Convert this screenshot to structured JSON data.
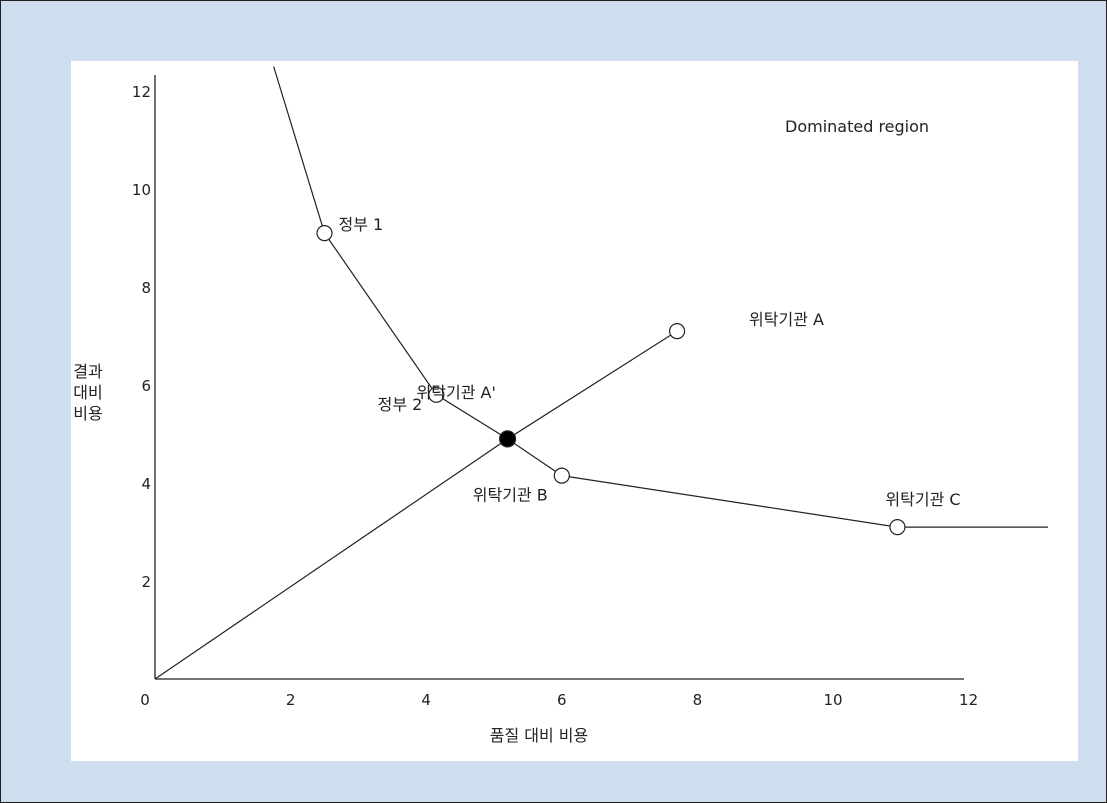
{
  "chart_data": {
    "type": "line",
    "title": "",
    "xlabel": "품질 대비 비용",
    "ylabel_lines": [
      "결과",
      "대비",
      "비용"
    ],
    "xlim": [
      0,
      12.3
    ],
    "ylim": [
      0,
      12.5
    ],
    "x_ticks": [
      0,
      2,
      4,
      6,
      8,
      10,
      12
    ],
    "y_ticks": [
      2,
      4,
      6,
      8,
      10,
      12
    ],
    "grid": false,
    "series": [
      {
        "points": [
          {
            "x": 1.75,
            "y": 12.5
          },
          {
            "x": 2.5,
            "y": 9.1
          },
          {
            "x": 4.15,
            "y": 5.8
          },
          {
            "x": 5.2,
            "y": 4.9
          },
          {
            "x": 6.0,
            "y": 4.15
          },
          {
            "x": 10.95,
            "y": 3.1
          },
          {
            "x": 13.5,
            "y": 3.1
          }
        ]
      },
      {
        "points": [
          {
            "x": 0,
            "y": 0
          },
          {
            "x": 5.2,
            "y": 4.9
          },
          {
            "x": 7.7,
            "y": 7.1
          }
        ]
      }
    ],
    "markers": [
      {
        "label": "정부 1",
        "x": 2.5,
        "y": 9.1,
        "filled": false
      },
      {
        "label": "정부 2",
        "x": 4.15,
        "y": 5.8,
        "filled": false
      },
      {
        "label": "위탁기관 A",
        "x": 7.7,
        "y": 7.1,
        "filled": false
      },
      {
        "label": "위탁기관 A'",
        "x": 5.2,
        "y": 4.9,
        "filled": true
      },
      {
        "label": "위탁기관 B",
        "x": 6.0,
        "y": 4.15,
        "filled": false
      },
      {
        "label": "위탁기관 C",
        "x": 10.95,
        "y": 3.1,
        "filled": false
      }
    ],
    "annotations": [
      {
        "text": "Dominated region"
      }
    ]
  }
}
